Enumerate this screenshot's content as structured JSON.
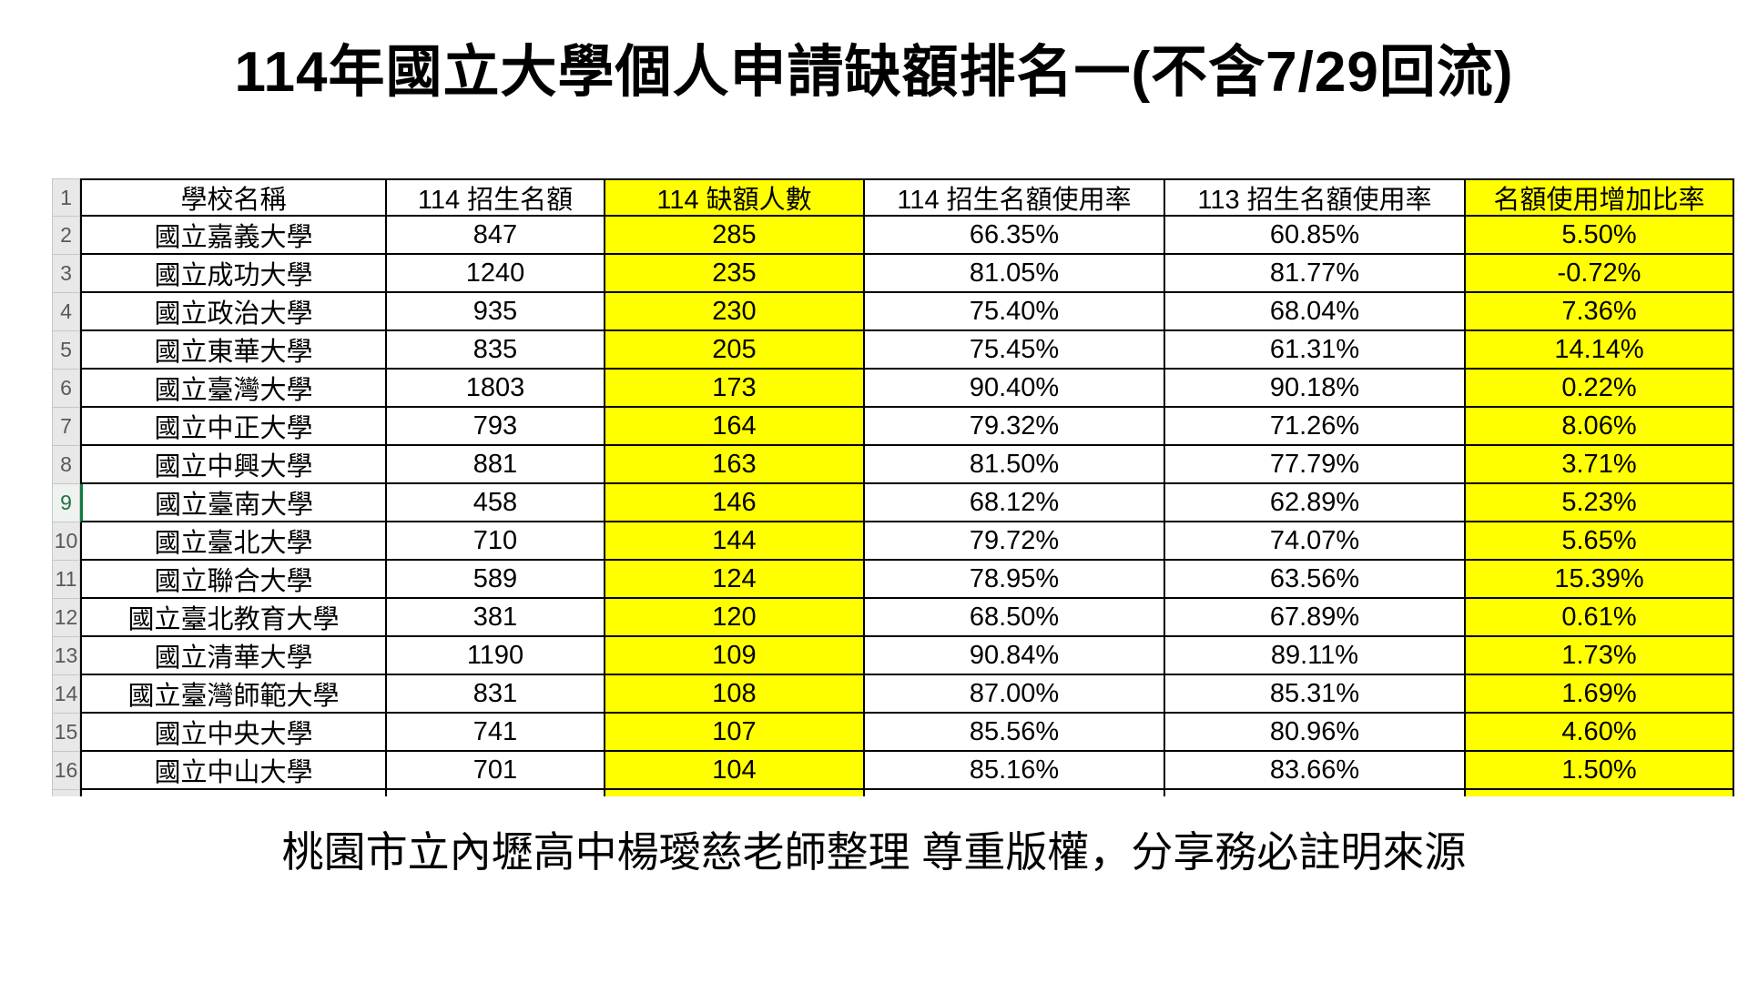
{
  "title": "114年國立大學個人申請缺額排名一(不含7/29回流)",
  "footer": "桃園市立內壢高中楊璦慈老師整理  尊重版權，分享務必註明來源",
  "highlight_color": "#FFFF00",
  "active_cell_color": "#217346",
  "table": {
    "active_row_number": "9",
    "row_numbers": [
      "1",
      "2",
      "3",
      "4",
      "5",
      "6",
      "7",
      "8",
      "9",
      "10",
      "11",
      "12",
      "13",
      "14",
      "15",
      "16"
    ],
    "columns": [
      {
        "label": "學校名稱",
        "highlight": false
      },
      {
        "label": "114 招生名額",
        "highlight": false
      },
      {
        "label": "114 缺額人數",
        "highlight": true
      },
      {
        "label": "114 招生名額使用率",
        "highlight": false
      },
      {
        "label": "113 招生名額使用率",
        "highlight": false
      },
      {
        "label": "名額使用增加比率",
        "highlight": true
      }
    ],
    "rows": [
      [
        "國立嘉義大學",
        "847",
        "285",
        "66.35%",
        "60.85%",
        "5.50%"
      ],
      [
        "國立成功大學",
        "1240",
        "235",
        "81.05%",
        "81.77%",
        "-0.72%"
      ],
      [
        "國立政治大學",
        "935",
        "230",
        "75.40%",
        "68.04%",
        "7.36%"
      ],
      [
        "國立東華大學",
        "835",
        "205",
        "75.45%",
        "61.31%",
        "14.14%"
      ],
      [
        "國立臺灣大學",
        "1803",
        "173",
        "90.40%",
        "90.18%",
        "0.22%"
      ],
      [
        "國立中正大學",
        "793",
        "164",
        "79.32%",
        "71.26%",
        "8.06%"
      ],
      [
        "國立中興大學",
        "881",
        "163",
        "81.50%",
        "77.79%",
        "3.71%"
      ],
      [
        "國立臺南大學",
        "458",
        "146",
        "68.12%",
        "62.89%",
        "5.23%"
      ],
      [
        "國立臺北大學",
        "710",
        "144",
        "79.72%",
        "74.07%",
        "5.65%"
      ],
      [
        "國立聯合大學",
        "589",
        "124",
        "78.95%",
        "63.56%",
        "15.39%"
      ],
      [
        "國立臺北教育大學",
        "381",
        "120",
        "68.50%",
        "67.89%",
        "0.61%"
      ],
      [
        "國立清華大學",
        "1190",
        "109",
        "90.84%",
        "89.11%",
        "1.73%"
      ],
      [
        "國立臺灣師範大學",
        "831",
        "108",
        "87.00%",
        "85.31%",
        "1.69%"
      ],
      [
        "國立中央大學",
        "741",
        "107",
        "85.56%",
        "80.96%",
        "4.60%"
      ],
      [
        "國立中山大學",
        "701",
        "104",
        "85.16%",
        "83.66%",
        "1.50%"
      ]
    ]
  }
}
